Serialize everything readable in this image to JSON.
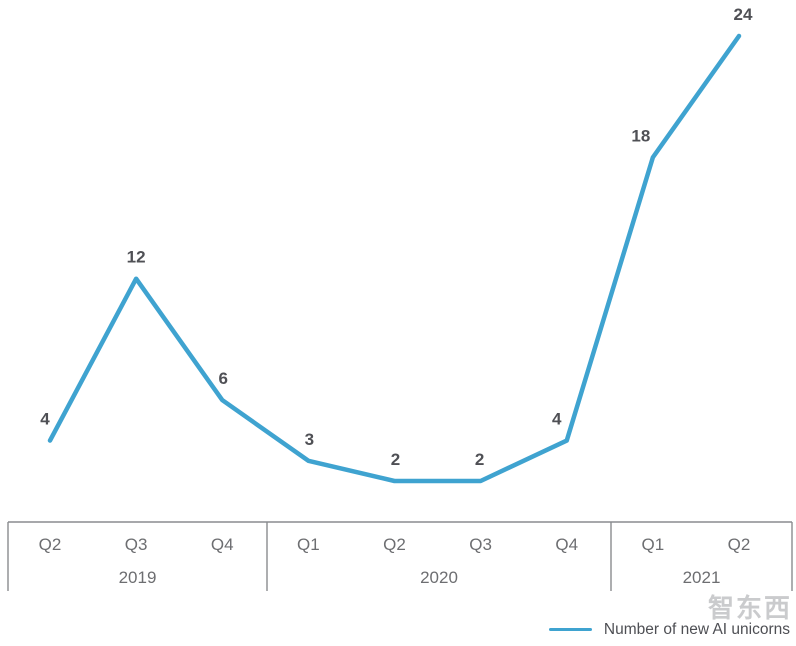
{
  "chart_data": {
    "type": "line",
    "title": "",
    "categories": [
      "Q2 2019",
      "Q3 2019",
      "Q4 2019",
      "Q1 2020",
      "Q2 2020",
      "Q3 2020",
      "Q4 2020",
      "Q1 2021",
      "Q2 2021"
    ],
    "values": [
      4,
      12,
      6,
      3,
      2,
      2,
      4,
      18,
      24
    ],
    "series": [
      {
        "name": "Number of new AI unicorns",
        "values": [
          4,
          12,
          6,
          3,
          2,
          2,
          4,
          18,
          24
        ]
      }
    ],
    "data_labels_shown": [
      4,
      12,
      6,
      3,
      2,
      2,
      4,
      18,
      24
    ],
    "xlabel": "",
    "ylabel": "",
    "ylim": [
      0,
      26
    ],
    "grid": "off",
    "legend_position": "bottom-right",
    "axis": {
      "quarter_labels": [
        "Q2",
        "Q3",
        "Q4",
        "Q1",
        "Q2",
        "Q3",
        "Q4",
        "Q1",
        "Q2"
      ],
      "year_groups": [
        {
          "label": "2019",
          "span": 3
        },
        {
          "label": "2020",
          "span": 4
        },
        {
          "label": "2021",
          "span": 2
        }
      ]
    },
    "legend": {
      "label": "Number of new AI unicorns"
    },
    "colors": {
      "line": "#3fa3d0",
      "value_label": "#4f5055",
      "axis_label": "#6d6e71",
      "axis_border": "#8a8c8f"
    }
  },
  "watermark": "智东西"
}
